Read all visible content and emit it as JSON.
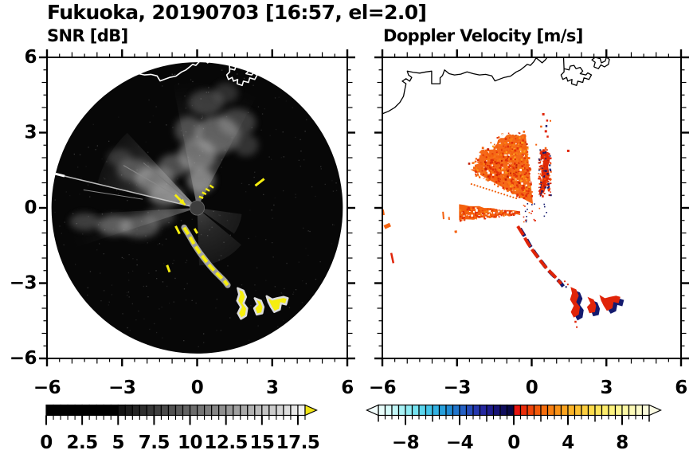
{
  "title": "Fukuoka, 20190703 [16:57, el=2.0]",
  "panels": {
    "left": {
      "subtitle": "SNR [dB]"
    },
    "right": {
      "subtitle": "Doppler Velocity [m/s]"
    }
  },
  "axes": {
    "xlim": [
      -6,
      6
    ],
    "ylim": [
      -6,
      6
    ],
    "major_values": [
      -6,
      -3,
      0,
      3,
      6
    ],
    "minor_step": 0.5,
    "x_tick_labels": [
      "−6",
      "−3",
      "0",
      "3",
      "6"
    ],
    "y_tick_labels": [
      "6",
      "3",
      "0",
      "−3",
      "−6"
    ]
  },
  "colorbars": {
    "snr": {
      "ticks": [
        "0",
        "2.5",
        "5",
        "7.5",
        "10",
        "12.5",
        "15",
        "17.5"
      ],
      "tick_values": [
        0,
        2.5,
        5,
        7.5,
        10,
        12.5,
        15,
        17.5
      ],
      "range": [
        0,
        18
      ],
      "cell_step": 0.5,
      "over_arrow": "#f0e413",
      "cells": [
        "#000000",
        "#000000",
        "#000000",
        "#000000",
        "#000000",
        "#000000",
        "#000000",
        "#000000",
        "#000000",
        "#000000",
        "#141414",
        "#1d1d1d",
        "#262626",
        "#2e2e2e",
        "#373737",
        "#404040",
        "#494949",
        "#515151",
        "#5a5a5a",
        "#636363",
        "#6c6c6c",
        "#757575",
        "#7d7d7d",
        "#868686",
        "#8f8f8f",
        "#989898",
        "#a0a0a0",
        "#a9a9a9",
        "#b2b2b2",
        "#bbbbbb",
        "#c4c4c4",
        "#cccccc",
        "#d5d5d5",
        "#dedede",
        "#e7e7e7",
        "#f0f0f0"
      ]
    },
    "velocity": {
      "ticks": [
        "−8",
        "−4",
        "0",
        "4",
        "8"
      ],
      "tick_values": [
        -8,
        -4,
        0,
        4,
        8
      ],
      "range": [
        -10,
        10
      ],
      "cell_step": 0.5,
      "under_arrow": "#f2fefd",
      "over_arrow": "#fbfbe4",
      "cells": [
        "#e9fdfb",
        "#d7fbfa",
        "#c1f7f8",
        "#a9f2f6",
        "#90ecf4",
        "#75e3f1",
        "#5bd5ed",
        "#44c5e9",
        "#33b2e3",
        "#28a0dc",
        "#218bd4",
        "#2276cc",
        "#2460c4",
        "#264bba",
        "#2638ae",
        "#24279f",
        "#1f1d8d",
        "#181476",
        "#100d5e",
        "#080845",
        "#e61510",
        "#ea2d0a",
        "#ef4408",
        "#f35909",
        "#f66d0c",
        "#f88011",
        "#fa9317",
        "#fba41f",
        "#fcb428",
        "#fdc233",
        "#fdcf3f",
        "#fedb4c",
        "#fee55b",
        "#feed6c",
        "#fef37f",
        "#fef792",
        "#fdf9a5",
        "#fdfab8",
        "#fcfbca",
        "#fbfbdb"
      ]
    }
  },
  "coastline": {
    "segments": [
      [
        [
          -6,
          3.75
        ],
        [
          -5.75,
          3.85
        ],
        [
          -5.5,
          4.0
        ],
        [
          -5.3,
          4.2
        ],
        [
          -5.15,
          4.45
        ],
        [
          -5.1,
          4.7
        ],
        [
          -5.05,
          4.95
        ],
        [
          -5.2,
          5.05
        ],
        [
          -5.05,
          5.15
        ],
        [
          -4.9,
          5.05
        ],
        [
          -4.82,
          5.2
        ],
        [
          -4.95,
          5.3
        ],
        [
          -5.0,
          5.45
        ],
        [
          -4.75,
          5.4
        ],
        [
          -4.5,
          5.37
        ],
        [
          -4.25,
          5.42
        ],
        [
          -4.02,
          5.45
        ],
        [
          -4.02,
          4.95
        ],
        [
          -3.68,
          4.95
        ],
        [
          -3.68,
          5.18
        ],
        [
          -3.58,
          5.28
        ],
        [
          -3.5,
          5.5
        ],
        [
          -3.32,
          5.35
        ],
        [
          -3.1,
          5.3
        ],
        [
          -2.85,
          5.33
        ],
        [
          -2.6,
          5.42
        ],
        [
          -2.35,
          5.35
        ],
        [
          -2.1,
          5.3
        ],
        [
          -1.85,
          5.32
        ],
        [
          -1.6,
          5.26
        ],
        [
          -1.48,
          5.06
        ],
        [
          -1.32,
          5.12
        ],
        [
          -1.1,
          5.2
        ],
        [
          -0.85,
          5.25
        ],
        [
          -0.62,
          5.42
        ],
        [
          -0.45,
          5.5
        ],
        [
          -0.3,
          5.62
        ],
        [
          -0.18,
          5.72
        ],
        [
          -0.05,
          5.68
        ],
        [
          0.08,
          5.82
        ],
        [
          0.18,
          5.98
        ],
        [
          0.3,
          5.88
        ],
        [
          0.42,
          5.78
        ],
        [
          0.55,
          5.9
        ],
        [
          0.62,
          6.0
        ]
      ],
      [
        [
          1.28,
          6.0
        ],
        [
          1.3,
          5.55
        ],
        [
          1.5,
          5.5
        ],
        [
          1.55,
          5.65
        ],
        [
          1.7,
          5.68
        ],
        [
          1.78,
          5.55
        ],
        [
          1.95,
          5.6
        ],
        [
          2.05,
          5.45
        ],
        [
          1.95,
          5.35
        ],
        [
          2.18,
          5.3
        ],
        [
          2.25,
          5.38
        ],
        [
          2.4,
          5.3
        ],
        [
          2.3,
          5.12
        ],
        [
          2.1,
          5.18
        ],
        [
          2.05,
          5.0
        ],
        [
          1.85,
          5.05
        ],
        [
          1.8,
          4.88
        ],
        [
          1.6,
          4.95
        ],
        [
          1.62,
          5.12
        ],
        [
          1.45,
          5.05
        ],
        [
          1.4,
          5.2
        ],
        [
          1.25,
          5.12
        ],
        [
          1.18,
          5.3
        ],
        [
          1.3,
          5.42
        ],
        [
          1.3,
          5.55
        ]
      ],
      [
        [
          2.5,
          5.62
        ],
        [
          2.55,
          5.8
        ],
        [
          2.42,
          5.9
        ],
        [
          2.55,
          6.0
        ],
        [
          2.75,
          5.95
        ],
        [
          2.8,
          5.78
        ],
        [
          2.95,
          5.85
        ],
        [
          3.0,
          6.0
        ],
        [
          3.12,
          5.92
        ],
        [
          3.08,
          5.72
        ],
        [
          2.92,
          5.62
        ],
        [
          2.78,
          5.7
        ],
        [
          2.68,
          5.55
        ],
        [
          2.5,
          5.62
        ]
      ]
    ]
  },
  "chart_data": [
    {
      "type": "radar_ppi",
      "name": "snr",
      "title": "SNR [dB]",
      "units": "dB",
      "xlim": [
        -6,
        6
      ],
      "ylim": [
        -6,
        6
      ],
      "disc_radius": 5.82,
      "background": "#070707",
      "yellow": "#f6ee0f",
      "center_color": "#3d3d3d",
      "fans": [
        {
          "a1": 62,
          "a2": 101,
          "r1": 5.0,
          "opacity": 0.6
        },
        {
          "a1": 133,
          "a2": 168,
          "r1": 4.1,
          "opacity": 0.85
        },
        {
          "a1": 183,
          "a2": 198,
          "r1": 5.9,
          "opacity": 0.5
        },
        {
          "a1": -88,
          "a2": -38,
          "r1": 2.3,
          "opacity": 0.3
        },
        {
          "a1": -35,
          "a2": -8,
          "r1": 1.8,
          "opacity": 0.25
        }
      ],
      "clouds": [
        [
          0.15,
          1.1,
          0.55,
          0.5,
          0.55
        ],
        [
          0,
          2.1,
          0.75,
          0.65,
          0.5
        ],
        [
          0.8,
          2.9,
          0.9,
          0.75,
          0.45
        ],
        [
          -0.35,
          3.1,
          0.55,
          0.55,
          0.35
        ],
        [
          1.6,
          3.4,
          0.75,
          0.55,
          0.3
        ],
        [
          0.35,
          4.2,
          0.7,
          0.5,
          0.28
        ],
        [
          1.15,
          4.6,
          0.5,
          0.4,
          0.22
        ],
        [
          1.95,
          2.5,
          0.5,
          0.45,
          0.25
        ],
        [
          -0.9,
          1.7,
          0.65,
          0.45,
          0.4
        ],
        [
          -1.7,
          1.15,
          0.8,
          0.5,
          0.5
        ],
        [
          -2.5,
          1.5,
          0.7,
          0.45,
          0.35
        ],
        [
          -3.1,
          2.0,
          0.5,
          0.35,
          0.22
        ],
        [
          -1.25,
          0.5,
          0.7,
          0.4,
          0.55
        ],
        [
          -2.3,
          -0.75,
          0.8,
          0.45,
          0.4
        ],
        [
          -3.3,
          -0.7,
          0.7,
          0.4,
          0.45
        ],
        [
          -4.5,
          -0.55,
          0.6,
          0.35,
          0.3
        ],
        [
          -1.5,
          -0.35,
          0.6,
          0.35,
          0.3
        ]
      ],
      "rays": [
        [
          166.5,
          0.3,
          5.9,
          1.5,
          "#cfcfcf"
        ],
        [
          150,
          0.3,
          3.4,
          1.2,
          "#8a8a8a"
        ],
        [
          140,
          0.3,
          2.8,
          1.0,
          "#787878"
        ],
        [
          171,
          2.2,
          4.6,
          1.0,
          "#9a9a9a"
        ]
      ],
      "edge_flash": {
        "a": 166.5,
        "r1": 5.45,
        "r2": 5.85
      },
      "streak": [
        [
          -0.52,
          -0.78
        ],
        [
          -0.32,
          -1.1
        ],
        [
          -0.12,
          -1.45
        ],
        [
          0.1,
          -1.78
        ],
        [
          0.3,
          -2.04
        ],
        [
          0.5,
          -2.3
        ],
        [
          0.68,
          -2.5
        ],
        [
          0.9,
          -2.72
        ],
        [
          1.1,
          -2.92
        ],
        [
          1.22,
          -3.08
        ]
      ],
      "blobs": {
        "a": [
          [
            1.62,
            -3.2
          ],
          [
            1.85,
            -3.3
          ],
          [
            1.95,
            -3.55
          ],
          [
            1.85,
            -3.8
          ],
          [
            2.0,
            -4.0
          ],
          [
            1.95,
            -4.3
          ],
          [
            1.75,
            -4.42
          ],
          [
            1.63,
            -4.2
          ],
          [
            1.75,
            -3.95
          ],
          [
            1.6,
            -3.7
          ],
          [
            1.68,
            -3.45
          ]
        ],
        "b": [
          [
            2.3,
            -3.6
          ],
          [
            2.55,
            -3.7
          ],
          [
            2.65,
            -3.95
          ],
          [
            2.6,
            -4.2
          ],
          [
            2.38,
            -4.25
          ],
          [
            2.28,
            -4.0
          ],
          [
            2.42,
            -3.85
          ]
        ],
        "c": [
          [
            2.78,
            -3.52
          ],
          [
            3.0,
            -3.65
          ],
          [
            3.2,
            -3.6
          ],
          [
            3.45,
            -3.55
          ],
          [
            3.62,
            -3.6
          ],
          [
            3.55,
            -3.85
          ],
          [
            3.35,
            -3.8
          ],
          [
            3.3,
            -4.05
          ],
          [
            3.08,
            -4.15
          ],
          [
            2.95,
            -3.95
          ],
          [
            2.85,
            -3.75
          ]
        ]
      },
      "dashes": [
        [
          2.5,
          1.02,
          0.45,
          38
        ],
        [
          -1.15,
          -2.42,
          0.3,
          -70
        ],
        [
          -0.78,
          -0.88,
          0.35,
          -63
        ],
        [
          -0.05,
          -0.92,
          0.22,
          -60
        ]
      ],
      "arc_dashes": [
        [
          0.16,
          0.42
        ],
        [
          0.28,
          0.58
        ],
        [
          0.42,
          0.72
        ],
        [
          0.58,
          0.85
        ]
      ],
      "arrow": [
        [
          -0.88,
          0.52
        ],
        [
          -0.48,
          0.12
        ]
      ]
    },
    {
      "type": "radar_ppi",
      "name": "velocity",
      "title": "Doppler Velocity [m/s]",
      "units": "m/s",
      "xlim": [
        -6,
        6
      ],
      "ylim": [
        -6,
        6
      ],
      "colors": {
        "red": "#e02408",
        "navy": "#141a6e",
        "orange": "#f4610e",
        "darkred": "#c21d05",
        "lightorange": "#fca01e"
      },
      "wedge_nw": {
        "apex": [
          0.05,
          0.15
        ],
        "a1": 96,
        "a2": 153,
        "r_base": 2.85
      },
      "column": [
        [
          0.28,
          0.5
        ],
        [
          0.5,
          0.62
        ],
        [
          0.6,
          0.95
        ],
        [
          0.72,
          1.3
        ],
        [
          0.66,
          1.65
        ],
        [
          0.74,
          1.95
        ],
        [
          0.6,
          2.25
        ],
        [
          0.45,
          2.35
        ],
        [
          0.35,
          2.15
        ],
        [
          0.46,
          1.8
        ],
        [
          0.38,
          1.45
        ],
        [
          0.45,
          1.05
        ],
        [
          0.32,
          0.72
        ]
      ],
      "wedge_w": {
        "x_left": -2.92,
        "x_right": -0.5,
        "top_left_y": 0.12,
        "top_right_y": -0.14,
        "bot_left_y": -0.5,
        "bot_right_y": -0.22
      },
      "dot_ray": [
        [
          -0.62,
          0.38
        ],
        [
          -2.42,
          0.95
        ]
      ],
      "specks": [
        [
          0.42,
          3.78,
          "r",
          3
        ],
        [
          0.58,
          3.52,
          "r",
          2.5
        ],
        [
          0.34,
          3.28,
          "o",
          2.5
        ],
        [
          0.52,
          3.1,
          "r",
          3
        ],
        [
          0.72,
          3.5,
          "o",
          2
        ],
        [
          0.6,
          2.88,
          "r",
          2.5
        ],
        [
          0.55,
          3.3,
          "n",
          2.5
        ],
        [
          1.42,
          2.32,
          "r",
          3
        ],
        [
          0.52,
          2.42,
          "o",
          2.5
        ],
        [
          0.32,
          2.2,
          "r",
          2
        ],
        [
          0.66,
          2.15,
          "r",
          2
        ],
        [
          0.15,
          2.55,
          "o",
          2
        ]
      ],
      "scatter": [
        [
          -5.97,
          -0.18,
          0.22,
          100,
          "o",
          3
        ],
        [
          -5.8,
          -0.72,
          0.26,
          25,
          "o",
          5
        ],
        [
          -3.55,
          -0.3,
          0.3,
          95,
          "o",
          2
        ],
        [
          -3.32,
          -0.42,
          0.12,
          95,
          "o",
          2
        ],
        [
          -3.05,
          -0.95,
          0.1,
          10,
          "o",
          3
        ],
        [
          -5.6,
          -2.0,
          0.42,
          -78,
          "r",
          2.5
        ]
      ],
      "extra_dots": [
        [
          1.72,
          -4.5,
          "r",
          2.5
        ],
        [
          1.78,
          -4.72,
          "r",
          2
        ],
        [
          1.42,
          -3.02,
          "r",
          2
        ],
        [
          1.3,
          -2.9,
          "r",
          1.8
        ],
        [
          1.35,
          -3.12,
          "n",
          2
        ]
      ]
    }
  ]
}
